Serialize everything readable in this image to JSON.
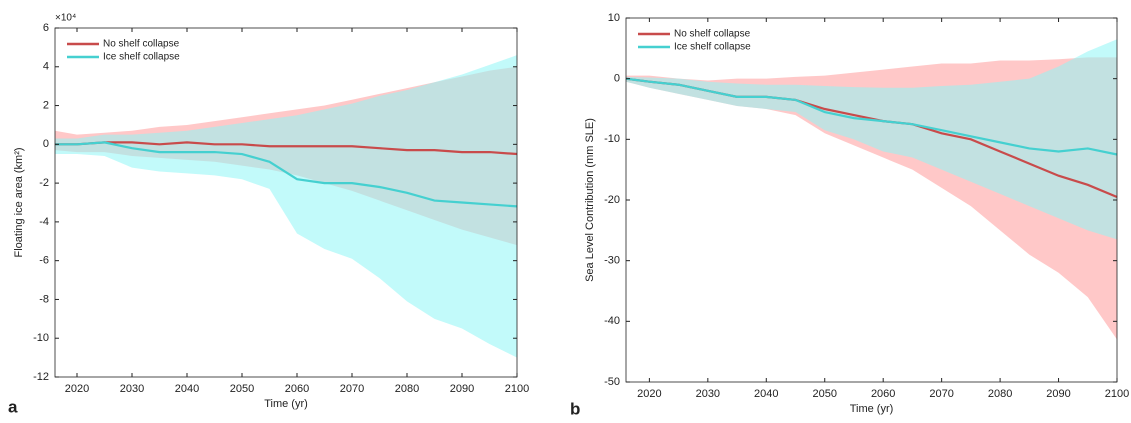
{
  "chart_data": [
    {
      "type": "line",
      "panel": "a",
      "y_label": "Floating ice area (km²)",
      "multiplier": "×10⁴",
      "x_label": "Time (yr)",
      "xlim": [
        2016,
        2100
      ],
      "xticks": [
        2020,
        2030,
        2040,
        2050,
        2060,
        2070,
        2080,
        2090,
        2100
      ],
      "ylim": [
        -12,
        6
      ],
      "yticks": [
        -12,
        -10,
        -8,
        -6,
        -4,
        -2,
        0,
        2,
        4,
        6
      ],
      "legend": "upper-left",
      "x": [
        2016,
        2020,
        2025,
        2030,
        2035,
        2040,
        2045,
        2050,
        2055,
        2060,
        2065,
        2070,
        2075,
        2080,
        2085,
        2090,
        2095,
        2100
      ],
      "series": [
        {
          "name": "No shelf collapse",
          "color": "#c84b4b",
          "band_color": "#ff9a9a",
          "values": [
            0,
            0,
            0.1,
            0.1,
            0,
            0.1,
            0,
            0,
            -0.1,
            -0.1,
            -0.1,
            -0.1,
            -0.2,
            -0.3,
            -0.3,
            -0.4,
            -0.4,
            -0.5
          ],
          "upper": [
            0.7,
            0.5,
            0.6,
            0.7,
            0.9,
            1.0,
            1.2,
            1.4,
            1.6,
            1.8,
            2.0,
            2.3,
            2.6,
            2.9,
            3.2,
            3.5,
            3.8,
            4.0
          ],
          "lower": [
            -0.3,
            -0.4,
            -0.4,
            -0.6,
            -0.7,
            -0.8,
            -0.9,
            -1.1,
            -1.3,
            -1.6,
            -2.0,
            -2.4,
            -2.9,
            -3.4,
            -3.9,
            -4.4,
            -4.8,
            -5.2
          ]
        },
        {
          "name": "Ice shelf collapse",
          "color": "#45d0d0",
          "band_color": "#8ff5f5",
          "values": [
            0,
            0,
            0.1,
            -0.2,
            -0.4,
            -0.4,
            -0.4,
            -0.5,
            -0.9,
            -1.8,
            -2.0,
            -2.0,
            -2.2,
            -2.5,
            -2.9,
            -3.0,
            -3.1,
            -3.2
          ],
          "upper": [
            0.3,
            0.3,
            0.5,
            0.5,
            0.6,
            0.7,
            0.9,
            1.1,
            1.3,
            1.5,
            1.8,
            2.1,
            2.5,
            2.8,
            3.2,
            3.6,
            4.1,
            4.6
          ],
          "lower": [
            -0.5,
            -0.5,
            -0.6,
            -1.2,
            -1.4,
            -1.5,
            -1.6,
            -1.8,
            -2.3,
            -4.6,
            -5.4,
            -5.9,
            -6.9,
            -8.1,
            -9.0,
            -9.5,
            -10.3,
            -11.0
          ]
        }
      ]
    },
    {
      "type": "line",
      "panel": "b",
      "y_label": "Sea Level Contribution (mm SLE)",
      "x_label": "Time (yr)",
      "xlim": [
        2016,
        2100
      ],
      "xticks": [
        2020,
        2030,
        2040,
        2050,
        2060,
        2070,
        2080,
        2090,
        2100
      ],
      "ylim": [
        -50,
        10
      ],
      "yticks": [
        -50,
        -40,
        -30,
        -20,
        -10,
        0,
        10
      ],
      "legend": "upper-left",
      "x": [
        2016,
        2020,
        2025,
        2030,
        2035,
        2040,
        2045,
        2050,
        2055,
        2060,
        2065,
        2070,
        2075,
        2080,
        2085,
        2090,
        2095,
        2100
      ],
      "series": [
        {
          "name": "No shelf collapse",
          "color": "#c84b4b",
          "band_color": "#ff9a9a",
          "values": [
            0,
            -0.5,
            -1,
            -2,
            -3,
            -3,
            -3.5,
            -5,
            -6,
            -7,
            -7.5,
            -9,
            -10,
            -12,
            -14,
            -16,
            -17.5,
            -19.5
          ],
          "upper": [
            0.5,
            0.5,
            0,
            -0.3,
            0,
            0,
            0.3,
            0.5,
            1,
            1.5,
            2,
            2.5,
            2.5,
            3,
            3,
            3.2,
            3.5,
            3.5
          ],
          "lower": [
            -0.5,
            -1.5,
            -2.5,
            -3.5,
            -4.5,
            -5,
            -6,
            -9,
            -11,
            -13,
            -15,
            -18,
            -21,
            -25,
            -29,
            -32,
            -36,
            -43
          ]
        },
        {
          "name": "Ice shelf collapse",
          "color": "#45d0d0",
          "band_color": "#8ff5f5",
          "values": [
            0,
            -0.5,
            -1,
            -2,
            -3,
            -3,
            -3.5,
            -5.5,
            -6.5,
            -7,
            -7.5,
            -8.5,
            -9.5,
            -10.5,
            -11.5,
            -12,
            -11.5,
            -12.5
          ],
          "upper": [
            0.3,
            0.2,
            0,
            -0.5,
            -0.8,
            -1,
            -1,
            -1.2,
            -1.4,
            -1.5,
            -1.5,
            -1.2,
            -1,
            -0.5,
            0,
            2,
            4.5,
            6.5
          ],
          "lower": [
            -0.5,
            -1.5,
            -2.5,
            -3.5,
            -4.5,
            -5,
            -5.5,
            -8.5,
            -10,
            -12,
            -13,
            -15,
            -17,
            -19,
            -21,
            -23,
            -25,
            -26.5
          ]
        }
      ]
    }
  ]
}
